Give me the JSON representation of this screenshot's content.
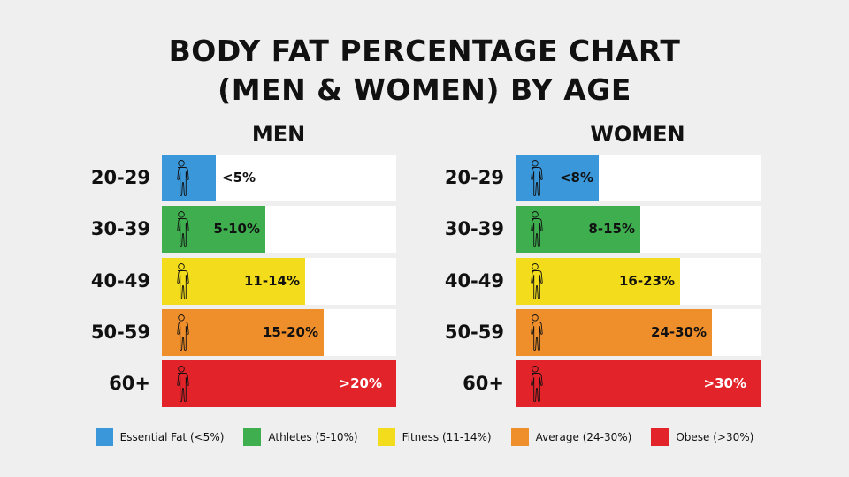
{
  "chart_data": {
    "type": "bar",
    "title_line1": "BODY FAT PERCENTAGE CHART",
    "title_line2": "(MEN & WOMEN) BY AGE",
    "categories": [
      "20-29",
      "30-39",
      "40-49",
      "50-59",
      "60+"
    ],
    "colors": [
      "#3a97d9",
      "#3fae4f",
      "#f2dc1b",
      "#ef8f2c",
      "#e3232a"
    ],
    "panels": [
      {
        "name": "MEN",
        "labels": [
          "<5%",
          "5-10%",
          "11-14%",
          "15-20%",
          ">20%"
        ],
        "fill_fraction": [
          0.23,
          0.44,
          0.61,
          0.69,
          1.0
        ]
      },
      {
        "name": "WOMEN",
        "labels": [
          "<8%",
          "8-15%",
          "16-23%",
          "24-30%",
          ">30%"
        ],
        "fill_fraction": [
          0.34,
          0.51,
          0.67,
          0.8,
          1.0
        ]
      }
    ],
    "legend": [
      {
        "label": "Essential Fat (<5%)",
        "color": "#3a97d9"
      },
      {
        "label": "Athletes (5-10%)",
        "color": "#3fae4f"
      },
      {
        "label": "Fitness (11-14%)",
        "color": "#f2dc1b"
      },
      {
        "label": "Average (24-30%)",
        "color": "#ef8f2c"
      },
      {
        "label": "Obese (>30%)",
        "color": "#e3232a"
      }
    ],
    "legend_placement": "bottom",
    "icon": "person-silhouette-icon"
  }
}
